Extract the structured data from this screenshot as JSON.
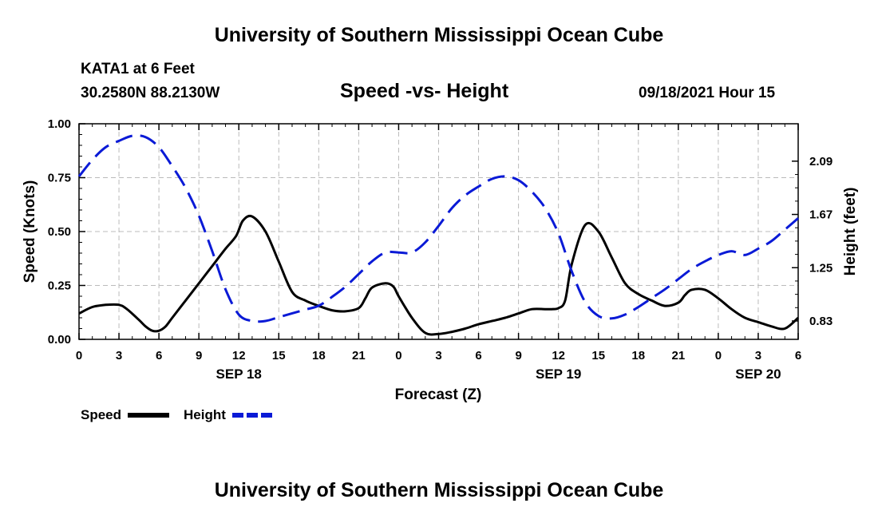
{
  "header": {
    "title": "University of Southern Mississippi Ocean Cube",
    "station": "KATA1 at 6 Feet",
    "coords": "30.2580N  88.2130W",
    "datetime": "09/18/2021 Hour 15"
  },
  "footer": {
    "title": "University of Southern Mississippi Ocean Cube"
  },
  "colors": {
    "speed": "#000000",
    "height": "#0a1ad6",
    "grid": "#bbbbbb"
  },
  "chart_data": {
    "type": "line",
    "title": "Speed -vs- Height",
    "xlabel": "Forecast (Z)",
    "ylabel": "Speed (Knots)",
    "y2label": "Height (feet)",
    "x_hours_range": [
      0,
      54
    ],
    "x_ticks": [
      "0",
      "3",
      "6",
      "9",
      "12",
      "15",
      "18",
      "21",
      "0",
      "3",
      "6",
      "9",
      "12",
      "15",
      "18",
      "21",
      "0",
      "3",
      "6"
    ],
    "date_labels": [
      {
        "label": "SEP 18",
        "hour": 12
      },
      {
        "label": "SEP 19",
        "hour": 36
      },
      {
        "label": "SEP 20",
        "hour": 51
      }
    ],
    "ylim": [
      0,
      1.0
    ],
    "yticks": [
      "0.00",
      "0.25",
      "0.50",
      "0.75",
      "1.00"
    ],
    "y2lim": [
      0.685,
      2.385
    ],
    "y2ticks": [
      "0.83",
      "1.25",
      "1.67",
      "2.09"
    ],
    "grid": true,
    "legend": {
      "placement": "bottom-left",
      "entries": [
        "Speed",
        "Height"
      ]
    },
    "series": [
      {
        "name": "Speed",
        "axis": "left",
        "style": "solid",
        "x": [
          0,
          1,
          2,
          3,
          3.6,
          4.5,
          5,
          5.5,
          6,
          6.5,
          7,
          8,
          9,
          10,
          11,
          11.8,
          12.3,
          13,
          14,
          15,
          16,
          17,
          18,
          19,
          20,
          21,
          21.5,
          22,
          23,
          23.6,
          24,
          25,
          26,
          27,
          28,
          29,
          30,
          31,
          32,
          33,
          34,
          35,
          35.5,
          36,
          36.5,
          37,
          38,
          39,
          40,
          41,
          42,
          43,
          44,
          45,
          45.5,
          46,
          47,
          48,
          49,
          50,
          51,
          52,
          53,
          54
        ],
        "values": [
          0.12,
          0.15,
          0.16,
          0.16,
          0.14,
          0.09,
          0.06,
          0.04,
          0.04,
          0.06,
          0.1,
          0.18,
          0.26,
          0.34,
          0.42,
          0.48,
          0.55,
          0.57,
          0.5,
          0.36,
          0.22,
          0.18,
          0.155,
          0.135,
          0.13,
          0.145,
          0.19,
          0.24,
          0.26,
          0.245,
          0.2,
          0.1,
          0.03,
          0.025,
          0.035,
          0.05,
          0.07,
          0.085,
          0.1,
          0.12,
          0.14,
          0.14,
          0.14,
          0.145,
          0.18,
          0.35,
          0.53,
          0.5,
          0.38,
          0.26,
          0.21,
          0.18,
          0.155,
          0.17,
          0.205,
          0.23,
          0.23,
          0.19,
          0.14,
          0.1,
          0.08,
          0.06,
          0.05,
          0.1
        ]
      },
      {
        "name": "Height",
        "axis": "right",
        "style": "dashed",
        "x": [
          0,
          1,
          2,
          3,
          4,
          5,
          6,
          7,
          8,
          9,
          10,
          11,
          12,
          13,
          14,
          15,
          16,
          17,
          18,
          19,
          20,
          21,
          22,
          23,
          24,
          25,
          26,
          27,
          28,
          29,
          30,
          31,
          32,
          33,
          34,
          35,
          36,
          37,
          38,
          39,
          40,
          41,
          42,
          43,
          44,
          45,
          46,
          47,
          48,
          49,
          50,
          51,
          52,
          53,
          54
        ],
        "values": [
          1.97,
          2.1,
          2.2,
          2.25,
          2.29,
          2.28,
          2.2,
          2.05,
          1.88,
          1.66,
          1.38,
          1.08,
          0.88,
          0.83,
          0.83,
          0.86,
          0.89,
          0.92,
          0.95,
          1.02,
          1.1,
          1.2,
          1.3,
          1.37,
          1.37,
          1.37,
          1.45,
          1.58,
          1.72,
          1.82,
          1.89,
          1.95,
          1.97,
          1.94,
          1.85,
          1.72,
          1.52,
          1.22,
          0.98,
          0.87,
          0.85,
          0.88,
          0.94,
          1.01,
          1.08,
          1.16,
          1.24,
          1.3,
          1.35,
          1.38,
          1.35,
          1.4,
          1.46,
          1.55,
          1.64
        ]
      }
    ]
  }
}
